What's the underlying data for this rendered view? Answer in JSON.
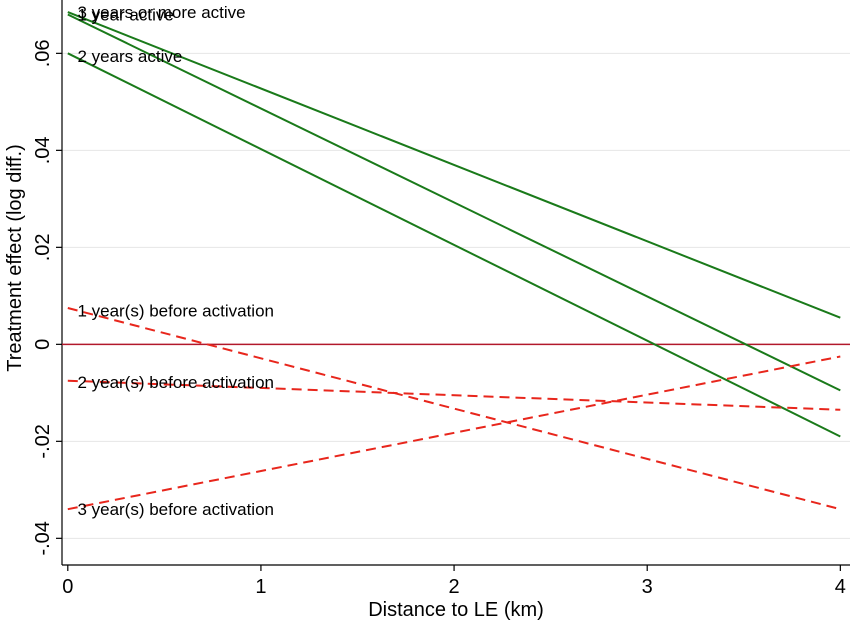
{
  "chart_data": {
    "type": "line",
    "title": "",
    "xlabel": "Distance to LE (km)",
    "ylabel": "Treatment effect (log diff.)",
    "xlim": [
      -0.03,
      4.05
    ],
    "ylim": [
      -0.0455,
      0.071
    ],
    "xticks": [
      0,
      1,
      2,
      3,
      4
    ],
    "xtick_labels": [
      "0",
      "1",
      "2",
      "3",
      "4"
    ],
    "yticks": [
      -0.04,
      -0.02,
      0,
      0.02,
      0.04,
      0.06
    ],
    "ytick_labels": [
      "-.04",
      "-.02",
      "0",
      ".02",
      ".04",
      ".06"
    ],
    "grid": "horizontal",
    "legend": "none",
    "reference_line": {
      "y": 0,
      "color": "#b2182b"
    },
    "series": [
      {
        "name": "3 years or more active",
        "x": [
          0,
          4
        ],
        "y": [
          0.0685,
          0.0055
        ],
        "color": "#1a7a1a",
        "style": "solid"
      },
      {
        "name": "1 year active",
        "x": [
          0,
          4
        ],
        "y": [
          0.068,
          -0.0095
        ],
        "color": "#1a7a1a",
        "style": "solid"
      },
      {
        "name": "2 years active",
        "x": [
          0,
          4
        ],
        "y": [
          0.06,
          -0.019
        ],
        "color": "#1a7a1a",
        "style": "solid"
      },
      {
        "name": "1 year(s) before activation",
        "x": [
          0,
          4
        ],
        "y": [
          0.0075,
          -0.034
        ],
        "color": "#e8261c",
        "style": "dashed"
      },
      {
        "name": "2 year(s) before activation",
        "x": [
          0,
          4
        ],
        "y": [
          -0.0075,
          -0.0135
        ],
        "color": "#e8261c",
        "style": "dashed"
      },
      {
        "name": "3 year(s) before activation",
        "x": [
          0,
          4
        ],
        "y": [
          -0.034,
          -0.0025
        ],
        "color": "#e8261c",
        "style": "dashed"
      }
    ],
    "series_labels": [
      {
        "text": "3 years or more active",
        "x": 0.05,
        "y": 0.0685
      },
      {
        "text": "1 year active",
        "x": 0.05,
        "y": 0.068
      },
      {
        "text": "2 years active",
        "x": 0.05,
        "y": 0.0595
      },
      {
        "text": "1 year(s) before activation",
        "x": 0.05,
        "y": 0.007
      },
      {
        "text": "2 year(s) before activation",
        "x": 0.05,
        "y": -0.0078
      },
      {
        "text": "3 year(s) before activation",
        "x": 0.05,
        "y": -0.034
      }
    ]
  }
}
